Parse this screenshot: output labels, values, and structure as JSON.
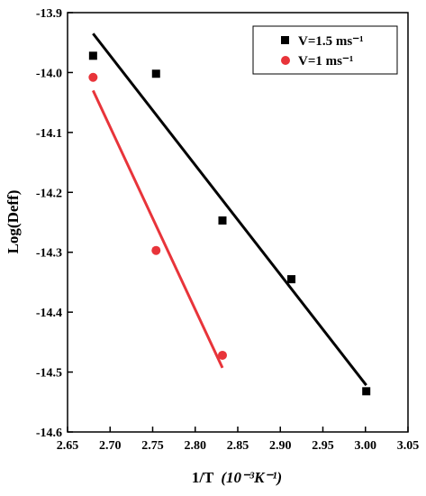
{
  "chart_data": {
    "type": "scatter",
    "title": "",
    "xlabel": "1/T",
    "xlabel_unit": "(10⁻³K⁻¹)",
    "ylabel": "Log(Deff)",
    "xlim": [
      2.65,
      3.05
    ],
    "ylim": [
      -14.6,
      -13.9
    ],
    "xticks": [
      "2.65",
      "2.70",
      "2.75",
      "2.80",
      "2.85",
      "2.90",
      "2.95",
      "3.00",
      "3.05"
    ],
    "yticks": [
      "-13.9",
      "-14.0",
      "-14.1",
      "-14.2",
      "-14.3",
      "-14.4",
      "-14.5",
      "-14.6"
    ],
    "legend_position": "top-right",
    "grid": false,
    "series": [
      {
        "name": "V=1.5 ms⁻¹",
        "marker": "square",
        "color": "#000000",
        "points": [
          [
            2.68,
            -13.972
          ],
          [
            2.754,
            -14.002
          ],
          [
            2.832,
            -14.247
          ],
          [
            2.913,
            -14.345
          ],
          [
            3.001,
            -14.532
          ]
        ],
        "fit_line": [
          [
            2.68,
            -13.935
          ],
          [
            3.001,
            -14.522
          ]
        ]
      },
      {
        "name": "V=1 ms⁻¹",
        "marker": "circle",
        "color": "#e8343a",
        "points": [
          [
            2.68,
            -14.008
          ],
          [
            2.754,
            -14.297
          ],
          [
            2.832,
            -14.472
          ]
        ],
        "fit_line": [
          [
            2.68,
            -14.03
          ],
          [
            2.832,
            -14.493
          ]
        ]
      }
    ]
  }
}
